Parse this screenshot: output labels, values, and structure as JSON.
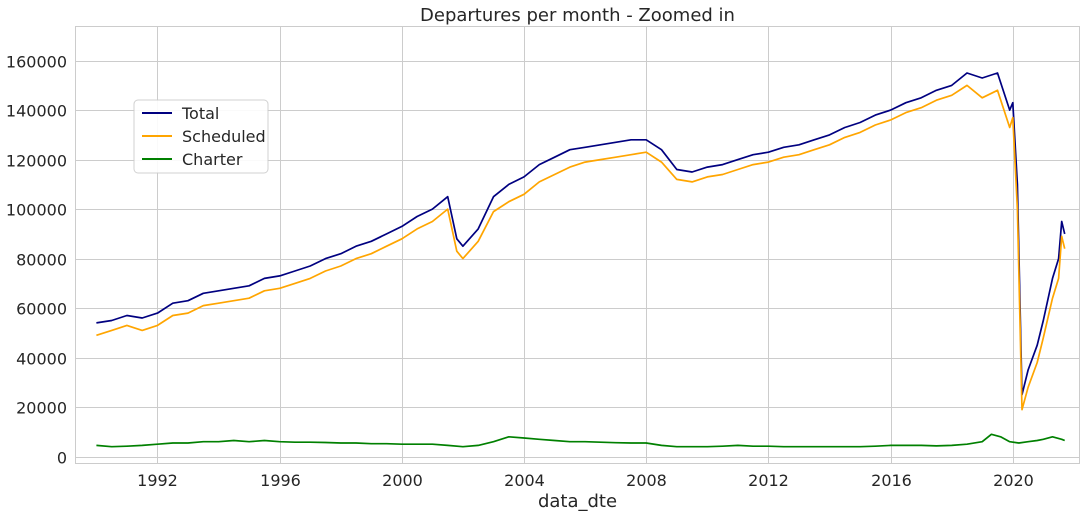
{
  "chart_data": {
    "type": "line",
    "title": "Departures per month - Zoomed in",
    "xlabel": "data_dte",
    "ylabel": "",
    "xlim": [
      1989.3,
      2022.2
    ],
    "ylim": [
      -3000,
      174000
    ],
    "x_ticks": [
      "1992",
      "1996",
      "2000",
      "2004",
      "2008",
      "2012",
      "2016",
      "2020"
    ],
    "y_ticks": [
      "0",
      "20000",
      "40000",
      "60000",
      "80000",
      "100000",
      "120000",
      "140000",
      "160000"
    ],
    "grid": true,
    "legend_position": "upper-left",
    "series": [
      {
        "name": "Total",
        "color": "#000080",
        "points": [
          [
            1990.0,
            54000
          ],
          [
            1990.5,
            55000
          ],
          [
            1991.0,
            57000
          ],
          [
            1991.5,
            56000
          ],
          [
            1992.0,
            58000
          ],
          [
            1992.5,
            62000
          ],
          [
            1993.0,
            63000
          ],
          [
            1993.5,
            66000
          ],
          [
            1994.0,
            67000
          ],
          [
            1994.5,
            68000
          ],
          [
            1995.0,
            69000
          ],
          [
            1995.5,
            72000
          ],
          [
            1996.0,
            73000
          ],
          [
            1996.5,
            75000
          ],
          [
            1997.0,
            77000
          ],
          [
            1997.5,
            80000
          ],
          [
            1998.0,
            82000
          ],
          [
            1998.5,
            85000
          ],
          [
            1999.0,
            87000
          ],
          [
            1999.5,
            90000
          ],
          [
            2000.0,
            93000
          ],
          [
            2000.5,
            97000
          ],
          [
            2001.0,
            100000
          ],
          [
            2001.5,
            105000
          ],
          [
            2001.8,
            88000
          ],
          [
            2002.0,
            85000
          ],
          [
            2002.5,
            92000
          ],
          [
            2003.0,
            105000
          ],
          [
            2003.5,
            110000
          ],
          [
            2004.0,
            113000
          ],
          [
            2004.5,
            118000
          ],
          [
            2005.0,
            121000
          ],
          [
            2005.5,
            124000
          ],
          [
            2006.0,
            125000
          ],
          [
            2006.5,
            126000
          ],
          [
            2007.0,
            127000
          ],
          [
            2007.5,
            128000
          ],
          [
            2008.0,
            128000
          ],
          [
            2008.5,
            124000
          ],
          [
            2009.0,
            116000
          ],
          [
            2009.5,
            115000
          ],
          [
            2010.0,
            117000
          ],
          [
            2010.5,
            118000
          ],
          [
            2011.0,
            120000
          ],
          [
            2011.5,
            122000
          ],
          [
            2012.0,
            123000
          ],
          [
            2012.5,
            125000
          ],
          [
            2013.0,
            126000
          ],
          [
            2013.5,
            128000
          ],
          [
            2014.0,
            130000
          ],
          [
            2014.5,
            133000
          ],
          [
            2015.0,
            135000
          ],
          [
            2015.5,
            138000
          ],
          [
            2016.0,
            140000
          ],
          [
            2016.5,
            143000
          ],
          [
            2017.0,
            145000
          ],
          [
            2017.5,
            148000
          ],
          [
            2018.0,
            150000
          ],
          [
            2018.5,
            155000
          ],
          [
            2019.0,
            153000
          ],
          [
            2019.5,
            155000
          ],
          [
            2019.9,
            140000
          ],
          [
            2020.0,
            143000
          ],
          [
            2020.15,
            110000
          ],
          [
            2020.3,
            25000
          ],
          [
            2020.5,
            35000
          ],
          [
            2020.8,
            45000
          ],
          [
            2021.0,
            55000
          ],
          [
            2021.3,
            72000
          ],
          [
            2021.5,
            80000
          ],
          [
            2021.6,
            95000
          ],
          [
            2021.7,
            90000
          ]
        ]
      },
      {
        "name": "Scheduled",
        "color": "#FFA500",
        "points": [
          [
            1990.0,
            49000
          ],
          [
            1990.5,
            51000
          ],
          [
            1991.0,
            53000
          ],
          [
            1991.5,
            51000
          ],
          [
            1992.0,
            53000
          ],
          [
            1992.5,
            57000
          ],
          [
            1993.0,
            58000
          ],
          [
            1993.5,
            61000
          ],
          [
            1994.0,
            62000
          ],
          [
            1994.5,
            63000
          ],
          [
            1995.0,
            64000
          ],
          [
            1995.5,
            67000
          ],
          [
            1996.0,
            68000
          ],
          [
            1996.5,
            70000
          ],
          [
            1997.0,
            72000
          ],
          [
            1997.5,
            75000
          ],
          [
            1998.0,
            77000
          ],
          [
            1998.5,
            80000
          ],
          [
            1999.0,
            82000
          ],
          [
            1999.5,
            85000
          ],
          [
            2000.0,
            88000
          ],
          [
            2000.5,
            92000
          ],
          [
            2001.0,
            95000
          ],
          [
            2001.5,
            100000
          ],
          [
            2001.8,
            83000
          ],
          [
            2002.0,
            80000
          ],
          [
            2002.5,
            87000
          ],
          [
            2003.0,
            99000
          ],
          [
            2003.5,
            103000
          ],
          [
            2004.0,
            106000
          ],
          [
            2004.5,
            111000
          ],
          [
            2005.0,
            114000
          ],
          [
            2005.5,
            117000
          ],
          [
            2006.0,
            119000
          ],
          [
            2006.5,
            120000
          ],
          [
            2007.0,
            121000
          ],
          [
            2007.5,
            122000
          ],
          [
            2008.0,
            123000
          ],
          [
            2008.5,
            119000
          ],
          [
            2009.0,
            112000
          ],
          [
            2009.5,
            111000
          ],
          [
            2010.0,
            113000
          ],
          [
            2010.5,
            114000
          ],
          [
            2011.0,
            116000
          ],
          [
            2011.5,
            118000
          ],
          [
            2012.0,
            119000
          ],
          [
            2012.5,
            121000
          ],
          [
            2013.0,
            122000
          ],
          [
            2013.5,
            124000
          ],
          [
            2014.0,
            126000
          ],
          [
            2014.5,
            129000
          ],
          [
            2015.0,
            131000
          ],
          [
            2015.5,
            134000
          ],
          [
            2016.0,
            136000
          ],
          [
            2016.5,
            139000
          ],
          [
            2017.0,
            141000
          ],
          [
            2017.5,
            144000
          ],
          [
            2018.0,
            146000
          ],
          [
            2018.5,
            150000
          ],
          [
            2019.0,
            145000
          ],
          [
            2019.5,
            148000
          ],
          [
            2019.9,
            133000
          ],
          [
            2020.0,
            137000
          ],
          [
            2020.15,
            100000
          ],
          [
            2020.3,
            19000
          ],
          [
            2020.5,
            28000
          ],
          [
            2020.8,
            38000
          ],
          [
            2021.0,
            48000
          ],
          [
            2021.3,
            64000
          ],
          [
            2021.5,
            72000
          ],
          [
            2021.6,
            89000
          ],
          [
            2021.7,
            84000
          ]
        ]
      },
      {
        "name": "Charter",
        "color": "#008000",
        "points": [
          [
            1990.0,
            4500
          ],
          [
            1990.5,
            4000
          ],
          [
            1991.0,
            4200
          ],
          [
            1991.5,
            4500
          ],
          [
            1992.0,
            5000
          ],
          [
            1992.5,
            5500
          ],
          [
            1993.0,
            5500
          ],
          [
            1993.5,
            6000
          ],
          [
            1994.0,
            6000
          ],
          [
            1994.5,
            6500
          ],
          [
            1995.0,
            6000
          ],
          [
            1995.5,
            6500
          ],
          [
            1996.0,
            6000
          ],
          [
            1996.5,
            5800
          ],
          [
            1997.0,
            5800
          ],
          [
            1997.5,
            5700
          ],
          [
            1998.0,
            5500
          ],
          [
            1998.5,
            5500
          ],
          [
            1999.0,
            5200
          ],
          [
            1999.5,
            5200
          ],
          [
            2000.0,
            5000
          ],
          [
            2000.5,
            5000
          ],
          [
            2001.0,
            5000
          ],
          [
            2001.5,
            4500
          ],
          [
            2002.0,
            4000
          ],
          [
            2002.5,
            4500
          ],
          [
            2003.0,
            6000
          ],
          [
            2003.5,
            8000
          ],
          [
            2004.0,
            7500
          ],
          [
            2004.5,
            7000
          ],
          [
            2005.0,
            6500
          ],
          [
            2005.5,
            6000
          ],
          [
            2006.0,
            6000
          ],
          [
            2006.5,
            5800
          ],
          [
            2007.0,
            5600
          ],
          [
            2007.5,
            5500
          ],
          [
            2008.0,
            5500
          ],
          [
            2008.5,
            4500
          ],
          [
            2009.0,
            4000
          ],
          [
            2009.5,
            4000
          ],
          [
            2010.0,
            4000
          ],
          [
            2010.5,
            4200
          ],
          [
            2011.0,
            4500
          ],
          [
            2011.5,
            4200
          ],
          [
            2012.0,
            4200
          ],
          [
            2012.5,
            4000
          ],
          [
            2013.0,
            4000
          ],
          [
            2013.5,
            4000
          ],
          [
            2014.0,
            4000
          ],
          [
            2014.5,
            4000
          ],
          [
            2015.0,
            4000
          ],
          [
            2015.5,
            4200
          ],
          [
            2016.0,
            4500
          ],
          [
            2016.5,
            4500
          ],
          [
            2017.0,
            4500
          ],
          [
            2017.5,
            4300
          ],
          [
            2018.0,
            4500
          ],
          [
            2018.5,
            5000
          ],
          [
            2019.0,
            6000
          ],
          [
            2019.3,
            9000
          ],
          [
            2019.6,
            8000
          ],
          [
            2019.9,
            6000
          ],
          [
            2020.2,
            5500
          ],
          [
            2020.5,
            6000
          ],
          [
            2020.8,
            6500
          ],
          [
            2021.0,
            7000
          ],
          [
            2021.3,
            8000
          ],
          [
            2021.6,
            7000
          ],
          [
            2021.7,
            6500
          ]
        ]
      }
    ]
  }
}
